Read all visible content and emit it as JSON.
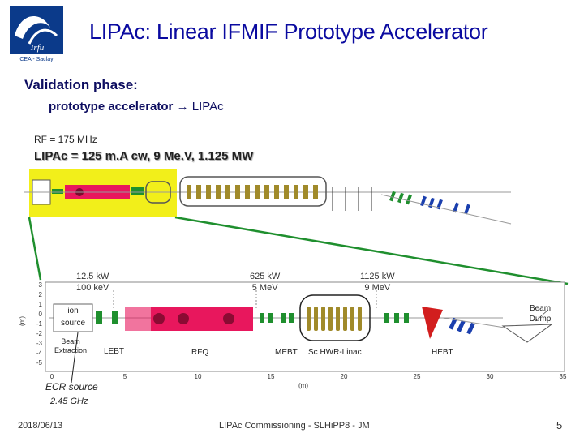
{
  "header": {
    "title": "LIPAc: Linear IFMIF Prototype Accelerator",
    "logo_text": "Irfu",
    "logo_caption": "CEA - Saclay"
  },
  "content": {
    "phase_heading": "Validation phase:",
    "prototype_label": "prototype accelerator",
    "arrow": "→",
    "lipac": "LIPAc",
    "rf": "RF = 175 MHz",
    "params": "LIPAc = 125 m.A cw, 9 Me.V, 1.125 MW"
  },
  "diagram": {
    "power_labels": [
      {
        "power": "12.5 kW",
        "energy": "100 keV"
      },
      {
        "power": "625 kW",
        "energy": "5 MeV"
      },
      {
        "power": "1125 kW",
        "energy": "9 MeV"
      }
    ],
    "components": {
      "ion_source": "ion source",
      "beam_extraction": "Beam Extraction",
      "lebt": "LEBT",
      "rfq": "RFQ",
      "mebt": "MEBT",
      "sc_hwr_linac": "Sc HWR-Linac",
      "hebt": "HEBT",
      "beam_dump": "Beam Dump"
    },
    "y_axis_label": "(m)",
    "y_ticks": [
      "3",
      "2",
      "1",
      "0",
      "-1",
      "-2",
      "-3",
      "-4",
      "-5"
    ],
    "x_ticks": [
      "0",
      "5",
      "10",
      "15",
      "20",
      "25",
      "30",
      "35"
    ],
    "x_axis_label": "(m)",
    "ecr_label": "ECR source",
    "ecr_freq": "2.45 GHz"
  },
  "footer": {
    "date": "2018/06/13",
    "text": "LIPAc Commissioning - SLHiPP8 - JM",
    "page": "5"
  },
  "colors": {
    "title": "#0a0aa0",
    "highlight": "#f2ef1a",
    "rfq": "#e8175d",
    "green": "#1f8f2e",
    "blue": "#1a3fae",
    "gold": "#a08a2a",
    "dump": "#d21e1e"
  }
}
